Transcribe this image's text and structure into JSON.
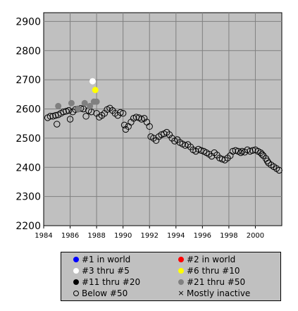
{
  "chart_data": {
    "type": "scatter",
    "title": "",
    "xlabel": "",
    "ylabel": "",
    "xlim": [
      1984,
      2002
    ],
    "ylim": [
      2200,
      2930
    ],
    "x_ticks": [
      "1984",
      "1986",
      "1988",
      "1990",
      "1992",
      "1994",
      "1996",
      "1998",
      "2000"
    ],
    "y_ticks": [
      "2200",
      "2300",
      "2400",
      "2500",
      "2600",
      "2700",
      "2800",
      "2900"
    ],
    "grid": true,
    "legend": {
      "placement": "bottom",
      "entries": [
        {
          "label": "#1 in world",
          "symbol": "dot",
          "color": "#0000ff"
        },
        {
          "label": "#2 in world",
          "symbol": "dot",
          "color": "#ff0000"
        },
        {
          "label": "#3 thru #5",
          "symbol": "dot",
          "color": "#ffffff"
        },
        {
          "label": "#6 thru #10",
          "symbol": "dot",
          "color": "#ffff00"
        },
        {
          "label": "#11 thru #20",
          "symbol": "dot",
          "color": "#000000"
        },
        {
          "label": "#21 thru #50",
          "symbol": "dot",
          "color": "#808080"
        },
        {
          "label": "Below #50",
          "symbol": "ring",
          "color": "#000000"
        },
        {
          "label": "Mostly inactive",
          "symbol": "cross",
          "color": "#000000"
        }
      ]
    },
    "series": [
      {
        "name": "#3 thru #5",
        "color": "#ffffff",
        "points": [
          [
            1987.7,
            2695
          ]
        ]
      },
      {
        "name": "#6 thru #10",
        "color": "#ffff00",
        "points": [
          [
            1987.9,
            2665
          ]
        ]
      },
      {
        "name": "#21 thru #50",
        "color": "#808080",
        "points": [
          [
            1985.1,
            2610
          ],
          [
            1986.1,
            2620
          ],
          [
            1986.6,
            2600
          ],
          [
            1987.1,
            2620
          ],
          [
            1987.5,
            2610
          ],
          [
            1987.8,
            2625
          ],
          [
            1988.0,
            2625
          ]
        ]
      },
      {
        "name": "Below #50",
        "color": "#000000",
        "points": [
          [
            1984.3,
            2570
          ],
          [
            1984.5,
            2575
          ],
          [
            1984.7,
            2575
          ],
          [
            1984.9,
            2578
          ],
          [
            1985.0,
            2548
          ],
          [
            1985.1,
            2580
          ],
          [
            1985.3,
            2585
          ],
          [
            1985.5,
            2590
          ],
          [
            1985.7,
            2592
          ],
          [
            1985.9,
            2595
          ],
          [
            1986.0,
            2565
          ],
          [
            1986.2,
            2590
          ],
          [
            1986.4,
            2598
          ],
          [
            1986.6,
            2600
          ],
          [
            1986.8,
            2602
          ],
          [
            1987.0,
            2600
          ],
          [
            1987.2,
            2575
          ],
          [
            1987.4,
            2595
          ],
          [
            1987.6,
            2590
          ],
          [
            1988.0,
            2585
          ],
          [
            1988.2,
            2572
          ],
          [
            1988.4,
            2578
          ],
          [
            1988.6,
            2585
          ],
          [
            1988.8,
            2598
          ],
          [
            1989.0,
            2603
          ],
          [
            1989.2,
            2595
          ],
          [
            1989.4,
            2585
          ],
          [
            1989.6,
            2578
          ],
          [
            1989.8,
            2588
          ],
          [
            1990.0,
            2585
          ],
          [
            1990.1,
            2545
          ],
          [
            1990.2,
            2530
          ],
          [
            1990.4,
            2540
          ],
          [
            1990.6,
            2555
          ],
          [
            1990.8,
            2568
          ],
          [
            1991.0,
            2572
          ],
          [
            1991.2,
            2570
          ],
          [
            1991.4,
            2565
          ],
          [
            1991.6,
            2568
          ],
          [
            1991.8,
            2555
          ],
          [
            1992.0,
            2540
          ],
          [
            1992.1,
            2505
          ],
          [
            1992.3,
            2500
          ],
          [
            1992.5,
            2492
          ],
          [
            1992.7,
            2505
          ],
          [
            1992.9,
            2512
          ],
          [
            1993.1,
            2515
          ],
          [
            1993.3,
            2520
          ],
          [
            1993.5,
            2512
          ],
          [
            1993.7,
            2500
          ],
          [
            1993.9,
            2490
          ],
          [
            1994.1,
            2495
          ],
          [
            1994.3,
            2485
          ],
          [
            1994.5,
            2480
          ],
          [
            1994.7,
            2475
          ],
          [
            1994.9,
            2478
          ],
          [
            1995.1,
            2470
          ],
          [
            1995.3,
            2460
          ],
          [
            1995.5,
            2455
          ],
          [
            1995.7,
            2462
          ],
          [
            1995.9,
            2458
          ],
          [
            1996.1,
            2455
          ],
          [
            1996.3,
            2450
          ],
          [
            1996.5,
            2445
          ],
          [
            1996.7,
            2438
          ],
          [
            1996.9,
            2450
          ],
          [
            1997.1,
            2442
          ],
          [
            1997.3,
            2432
          ],
          [
            1997.5,
            2428
          ],
          [
            1997.7,
            2425
          ],
          [
            1997.9,
            2432
          ],
          [
            1998.1,
            2440
          ],
          [
            1998.3,
            2455
          ],
          [
            1998.5,
            2458
          ],
          [
            1998.7,
            2455
          ],
          [
            1998.9,
            2450
          ],
          [
            1999.0,
            2455
          ],
          [
            1999.2,
            2452
          ],
          [
            1999.4,
            2460
          ],
          [
            1999.6,
            2455
          ],
          [
            1999.8,
            2458
          ],
          [
            2000.0,
            2460
          ],
          [
            2000.2,
            2455
          ],
          [
            2000.4,
            2450
          ],
          [
            2000.5,
            2445
          ],
          [
            2000.6,
            2440
          ],
          [
            2000.8,
            2430
          ],
          [
            2000.9,
            2422
          ],
          [
            2001.0,
            2415
          ],
          [
            2001.2,
            2408
          ],
          [
            2001.4,
            2402
          ],
          [
            2001.6,
            2396
          ],
          [
            2001.8,
            2390
          ]
        ]
      }
    ]
  }
}
